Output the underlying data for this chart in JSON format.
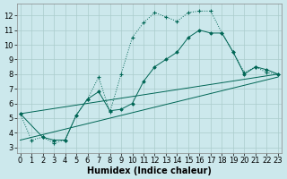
{
  "background_color": "#cce8ec",
  "grid_color": "#aacccc",
  "line_color": "#006655",
  "xlabel": "Humidex (Indice chaleur)",
  "ylim": [
    2.6,
    12.8
  ],
  "xlim": [
    -0.3,
    23.3
  ],
  "yticks": [
    3,
    4,
    5,
    6,
    7,
    8,
    9,
    10,
    11,
    12
  ],
  "xticks": [
    0,
    1,
    2,
    3,
    4,
    5,
    6,
    7,
    8,
    9,
    10,
    11,
    12,
    13,
    14,
    15,
    16,
    17,
    18,
    19,
    20,
    21,
    22,
    23
  ],
  "line1_x": [
    0,
    1,
    2,
    3,
    4,
    5,
    6,
    7,
    8,
    9,
    10,
    11,
    12,
    13,
    14,
    15,
    16,
    17,
    18,
    19,
    20,
    21,
    22,
    23
  ],
  "line1_y": [
    5.3,
    3.5,
    3.7,
    3.3,
    3.5,
    5.2,
    6.3,
    7.8,
    5.4,
    8.0,
    10.5,
    11.5,
    12.2,
    11.9,
    11.6,
    12.2,
    12.3,
    12.3,
    10.8,
    9.5,
    8.1,
    8.5,
    8.1,
    8.0
  ],
  "line2_x": [
    0,
    2,
    3,
    4,
    5,
    6,
    7,
    8,
    9,
    10,
    11,
    12,
    13,
    14,
    15,
    16,
    17,
    18,
    19,
    20,
    21,
    22,
    23
  ],
  "line2_y": [
    5.3,
    3.7,
    3.5,
    3.5,
    5.2,
    6.3,
    6.8,
    5.5,
    5.6,
    6.0,
    7.5,
    8.5,
    9.0,
    9.5,
    10.5,
    11.0,
    10.8,
    10.8,
    9.5,
    8.0,
    8.5,
    8.3,
    8.0
  ],
  "line3_x": [
    0,
    23
  ],
  "line3_y": [
    5.3,
    8.0
  ],
  "line4_x": [
    0,
    23
  ],
  "line4_y": [
    3.5,
    7.8
  ],
  "xlabel_fontsize": 7,
  "tick_fontsize": 6
}
